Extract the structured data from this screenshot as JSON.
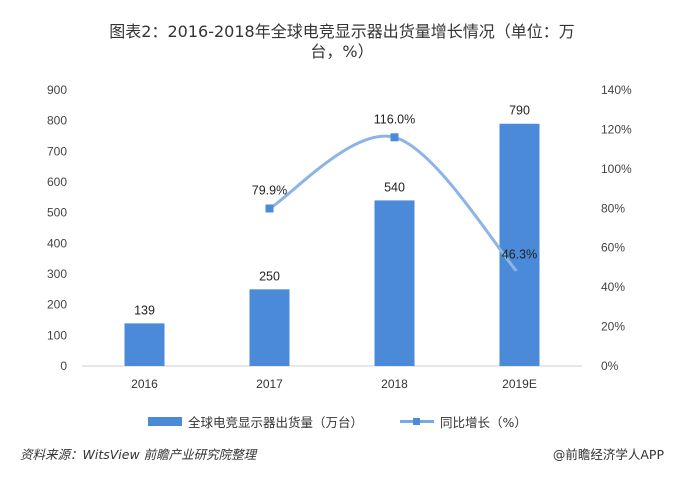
{
  "title_line1": "图表2：2016-2018年全球电竞显示器出货量增长情况（单位：万",
  "title_line2": "台，%）",
  "colors": {
    "bar": "#4a8ad9",
    "line": "#8cb4e6",
    "marker": "#4a8ad9"
  },
  "chart_data": {
    "type": "bar",
    "categories": [
      "2016",
      "2017",
      "2018",
      "2019E"
    ],
    "series": [
      {
        "name": "全球电竞显示器出货量（万台）",
        "kind": "bar",
        "axis": "left",
        "values": [
          139,
          250,
          540,
          790
        ],
        "labels": [
          "139",
          "250",
          "540",
          "790"
        ]
      },
      {
        "name": "同比增长（%）",
        "kind": "line",
        "axis": "right",
        "values": [
          null,
          79.9,
          116.0,
          46.3
        ],
        "labels": [
          "",
          "79.9%",
          "116.0%",
          "46.3%"
        ]
      }
    ],
    "ylim": [
      0,
      900
    ],
    "yticks": [
      "0",
      "100",
      "200",
      "300",
      "400",
      "500",
      "600",
      "700",
      "800",
      "900"
    ],
    "y2lim": [
      0,
      140
    ],
    "y2ticks": [
      "0%",
      "20%",
      "40%",
      "60%",
      "80%",
      "100%",
      "120%",
      "140%"
    ],
    "grid": false,
    "legend": "bottom"
  },
  "legend": {
    "bar_label": "全球电竞显示器出货量（万台）",
    "line_label": "同比增长（%）"
  },
  "footer": {
    "source": "资料来源：WitsView 前瞻产业研究院整理",
    "brand": "@前瞻经济学人APP"
  }
}
